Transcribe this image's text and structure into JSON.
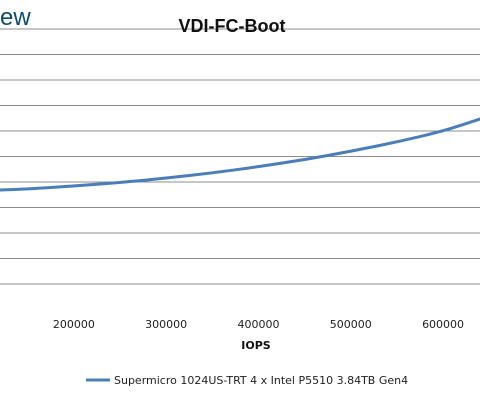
{
  "watermark": "ew",
  "chart_data": {
    "type": "line",
    "title": "VDI-FC-Boot",
    "xlabel": "IOPS",
    "ylabel": "",
    "xlim": [
      120000,
      640000
    ],
    "xticks": [
      200000,
      300000,
      400000,
      500000,
      600000
    ],
    "grid": true,
    "legend": "bottom",
    "series": [
      {
        "name": "Supermicro 1024US-TRT 4 x Intel P5510 3.84TB Gen4",
        "color": "#4a7ebb",
        "x": [
          120000,
          150000,
          200000,
          250000,
          300000,
          350000,
          400000,
          450000,
          500000,
          550000,
          600000,
          640000
        ],
        "y": [
          0,
          0.5,
          1.9,
          3.6,
          5.7,
          8.2,
          11.2,
          14.6,
          18.6,
          23.1,
          28.3,
          34.1
        ]
      }
    ]
  }
}
